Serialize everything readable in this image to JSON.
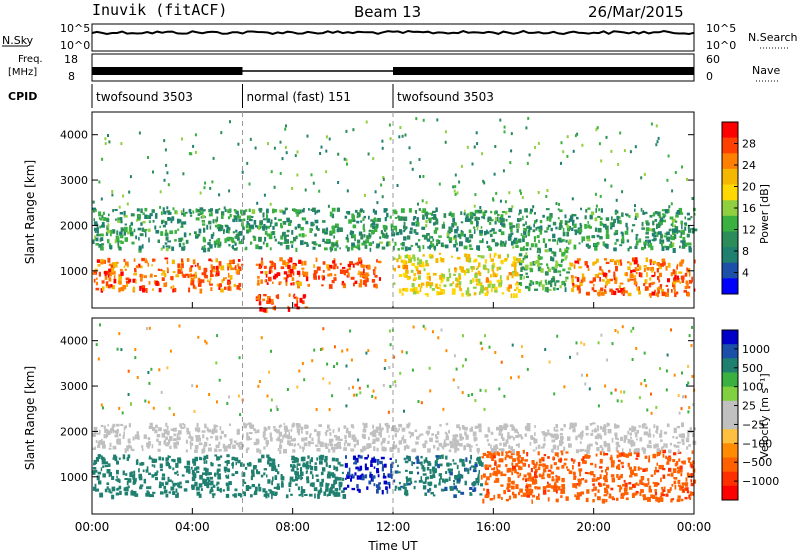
{
  "header": {
    "station": "Inuvik (fitACF)",
    "beam": "Beam 13",
    "date": "26/Mar/2015"
  },
  "strips": {
    "nsky_label": "N.Sky",
    "nsky_ticks": [
      "10^5",
      "10^0"
    ],
    "nsearch_label": "N.Search",
    "nsearch_ticks": [
      "10^5",
      "10^0"
    ],
    "freq_label_1": "Freq.",
    "freq_label_2": "[MHz]",
    "freq_ticks": [
      "18",
      "8"
    ],
    "nave_label": "Nave",
    "nave_ticks": [
      "60",
      "0"
    ],
    "cpid_label": "CPID",
    "cpid_segments": [
      {
        "label": "twofsound 3503",
        "start_hour": 0,
        "end_hour": 6
      },
      {
        "label": "normal (fast) 151",
        "start_hour": 6,
        "end_hour": 12
      },
      {
        "label": "twofsound 3503",
        "start_hour": 12,
        "end_hour": 24
      }
    ]
  },
  "chart_data": [
    {
      "type": "heatmap",
      "name_printed": "Power [dB]",
      "ylabel": "Slant Range [km]",
      "xlabel": "Time UT",
      "x_ticks": [
        "00:00",
        "04:00",
        "08:00",
        "12:00",
        "16:00",
        "20:00",
        "00:00"
      ],
      "y_ticks": [
        1000,
        2000,
        3000,
        4000
      ],
      "xlim_hours": [
        0,
        24
      ],
      "ylim_km": [
        180,
        4500
      ],
      "colorbar_label": "Power [dB]",
      "colorbar_ticks": [
        "28",
        "24",
        "20",
        "16",
        "12",
        "8",
        "4"
      ],
      "colorbar_colors": [
        "#ff0000",
        "#ff4000",
        "#ff8000",
        "#f5b800",
        "#ffd800",
        "#90d040",
        "#3ab040",
        "#2c8c5a",
        "#208070",
        "#1c50a8",
        "#0000ff"
      ],
      "regions": [
        {
          "t0": 0,
          "t1": 6,
          "r0": 600,
          "r1": 1300,
          "value": 26
        },
        {
          "t0": 6.5,
          "t1": 11.5,
          "r0": 700,
          "r1": 1300,
          "value": 27
        },
        {
          "t0": 6.5,
          "t1": 8.5,
          "r0": 180,
          "r1": 500,
          "value": 28
        },
        {
          "t0": 12,
          "t1": 17,
          "r0": 500,
          "r1": 1400,
          "value": 20
        },
        {
          "t0": 17,
          "t1": 19,
          "r0": 600,
          "r1": 1500,
          "value": 14
        },
        {
          "t0": 19,
          "t1": 24,
          "r0": 500,
          "r1": 1300,
          "value": 26
        },
        {
          "t0": 0,
          "t1": 24,
          "r0": 1500,
          "r1": 2400,
          "value": 12
        }
      ]
    },
    {
      "type": "heatmap",
      "ylabel": "Slant Range [km]",
      "xlabel": "Time UT",
      "x_ticks": [
        "00:00",
        "04:00",
        "08:00",
        "12:00",
        "16:00",
        "20:00",
        "00:00"
      ],
      "y_ticks": [
        1000,
        2000,
        3000,
        4000
      ],
      "xlim_hours": [
        0,
        24
      ],
      "ylim_km": [
        180,
        4500
      ],
      "colorbar_label": "Velocity [m s⁻¹]",
      "colorbar_ticks": [
        "1000",
        "500",
        "100",
        "25",
        "−25",
        "−100",
        "−500",
        "−1000"
      ],
      "colorbar_colors": [
        "#0000c8",
        "#1c50a8",
        "#208070",
        "#3ab040",
        "#80d040",
        "#c0c0c0",
        "#c0c0c0",
        "#ffc040",
        "#ff8c00",
        "#ff6000",
        "#ff3000",
        "#ff0000"
      ],
      "regions": [
        {
          "t0": 0,
          "t1": 10,
          "r0": 600,
          "r1": 1500,
          "value": 300
        },
        {
          "t0": 10,
          "t1": 12,
          "r0": 700,
          "r1": 1500,
          "value": 900
        },
        {
          "t0": 12,
          "t1": 15.5,
          "r0": 600,
          "r1": 1500,
          "value": 400
        },
        {
          "t0": 15.5,
          "t1": 24,
          "r0": 500,
          "r1": 1600,
          "value": -400
        },
        {
          "t0": 0,
          "t1": 24,
          "r0": 1600,
          "r1": 2200,
          "value": 0
        }
      ]
    }
  ]
}
